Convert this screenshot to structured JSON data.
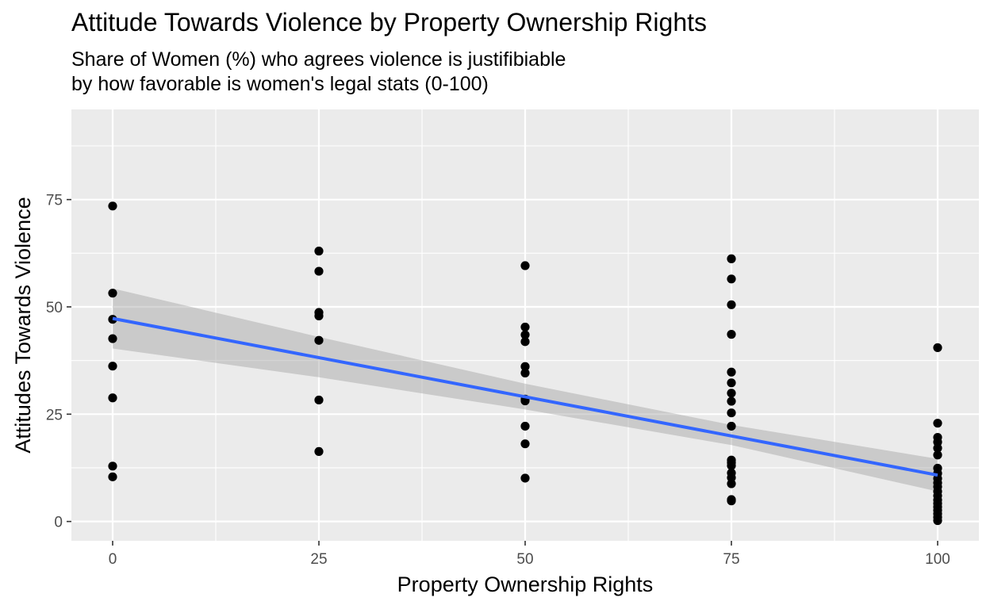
{
  "chart_data": {
    "type": "scatter",
    "title": "Attitude Towards Violence by Property Ownership Rights",
    "subtitle_lines": [
      "Share of Women (%) who agrees violence is justifibiable",
      "by how favorable is women's legal stats (0-100)"
    ],
    "xlabel": "Property Ownership Rights",
    "ylabel": "Attitudes Towards Violence",
    "xlim": [
      -5,
      105
    ],
    "ylim": [
      -4.5,
      96
    ],
    "x_ticks": [
      0,
      25,
      50,
      75,
      100
    ],
    "x_tick_labels": [
      "0",
      "25",
      "50",
      "75",
      "100"
    ],
    "y_ticks": [
      0,
      25,
      50,
      75
    ],
    "y_tick_labels": [
      "0",
      "25",
      "50",
      "75"
    ],
    "grid": true,
    "points": [
      {
        "x": 0,
        "y": 73.5
      },
      {
        "x": 0,
        "y": 53.2
      },
      {
        "x": 0,
        "y": 47.1
      },
      {
        "x": 0,
        "y": 42.6
      },
      {
        "x": 0,
        "y": 36.2
      },
      {
        "x": 0,
        "y": 28.8
      },
      {
        "x": 0,
        "y": 12.9
      },
      {
        "x": 0,
        "y": 10.4
      },
      {
        "x": 25,
        "y": 63.0
      },
      {
        "x": 25,
        "y": 58.3
      },
      {
        "x": 25,
        "y": 48.7
      },
      {
        "x": 25,
        "y": 47.9
      },
      {
        "x": 25,
        "y": 42.2
      },
      {
        "x": 25,
        "y": 28.3
      },
      {
        "x": 25,
        "y": 16.3
      },
      {
        "x": 50,
        "y": 59.6
      },
      {
        "x": 50,
        "y": 45.3
      },
      {
        "x": 50,
        "y": 43.5
      },
      {
        "x": 50,
        "y": 41.9
      },
      {
        "x": 50,
        "y": 36.1
      },
      {
        "x": 50,
        "y": 34.6
      },
      {
        "x": 50,
        "y": 28.5
      },
      {
        "x": 50,
        "y": 28.1
      },
      {
        "x": 50,
        "y": 22.2
      },
      {
        "x": 50,
        "y": 18.1
      },
      {
        "x": 50,
        "y": 10.1
      },
      {
        "x": 75,
        "y": 61.2
      },
      {
        "x": 75,
        "y": 56.5
      },
      {
        "x": 75,
        "y": 50.5
      },
      {
        "x": 75,
        "y": 43.6
      },
      {
        "x": 75,
        "y": 34.8
      },
      {
        "x": 75,
        "y": 32.3
      },
      {
        "x": 75,
        "y": 29.9
      },
      {
        "x": 75,
        "y": 28.0
      },
      {
        "x": 75,
        "y": 25.3
      },
      {
        "x": 75,
        "y": 22.2
      },
      {
        "x": 75,
        "y": 14.3
      },
      {
        "x": 75,
        "y": 13.7
      },
      {
        "x": 75,
        "y": 13.0
      },
      {
        "x": 75,
        "y": 11.3
      },
      {
        "x": 75,
        "y": 10.2
      },
      {
        "x": 75,
        "y": 8.8
      },
      {
        "x": 75,
        "y": 5.1
      },
      {
        "x": 75,
        "y": 4.8
      },
      {
        "x": 100,
        "y": 40.5
      },
      {
        "x": 100,
        "y": 22.9
      },
      {
        "x": 100,
        "y": 19.6
      },
      {
        "x": 100,
        "y": 18.5
      },
      {
        "x": 100,
        "y": 17.1
      },
      {
        "x": 100,
        "y": 15.5
      },
      {
        "x": 100,
        "y": 12.4
      },
      {
        "x": 100,
        "y": 11.2
      },
      {
        "x": 100,
        "y": 10.0
      },
      {
        "x": 100,
        "y": 9.0
      },
      {
        "x": 100,
        "y": 8.1
      },
      {
        "x": 100,
        "y": 7.0
      },
      {
        "x": 100,
        "y": 6.0
      },
      {
        "x": 100,
        "y": 5.0
      },
      {
        "x": 100,
        "y": 4.2
      },
      {
        "x": 100,
        "y": 3.4
      },
      {
        "x": 100,
        "y": 2.6
      },
      {
        "x": 100,
        "y": 1.8
      },
      {
        "x": 100,
        "y": 1.0
      },
      {
        "x": 100,
        "y": 0.2
      }
    ],
    "fit_line": {
      "x": [
        0,
        100
      ],
      "y": [
        47.3,
        10.8
      ]
    },
    "confidence_band": {
      "x": [
        0,
        25,
        50,
        75,
        100
      ],
      "upper": [
        54.3,
        43.0,
        32.1,
        22.5,
        14.6
      ],
      "lower": [
        40.3,
        33.6,
        26.1,
        17.8,
        7.0
      ]
    },
    "colors": {
      "panel_background": "#ebebeb",
      "grid": "#ffffff",
      "points": "#000000",
      "fit_line": "#3366ff",
      "band": "#999999"
    }
  }
}
